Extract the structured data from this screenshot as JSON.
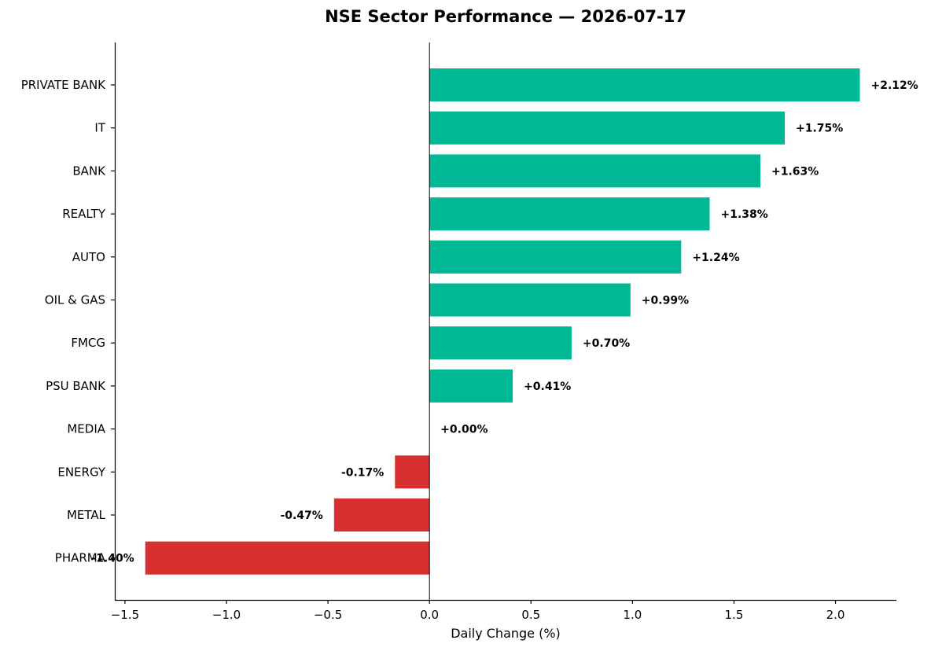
{
  "chart_data": {
    "type": "bar",
    "orientation": "horizontal",
    "title": "NSE Sector Performance — 2026-07-17",
    "xlabel": "Daily Change (%)",
    "ylabel": "",
    "xlim": [
      -1.55,
      2.3
    ],
    "xticks": [
      -1.5,
      -1.0,
      -0.5,
      0.0,
      0.5,
      1.0,
      1.5,
      2.0
    ],
    "xtick_labels": [
      "−1.5",
      "−1.0",
      "−0.5",
      "0.0",
      "0.5",
      "1.0",
      "1.5",
      "2.0"
    ],
    "categories": [
      "PRIVATE BANK",
      "IT",
      "BANK",
      "REALTY",
      "AUTO",
      "OIL & GAS",
      "FMCG",
      "PSU BANK",
      "MEDIA",
      "ENERGY",
      "METAL",
      "PHARMA"
    ],
    "values": [
      2.12,
      1.75,
      1.63,
      1.38,
      1.24,
      0.99,
      0.7,
      0.41,
      0.0,
      -0.17,
      -0.47,
      -1.4
    ],
    "value_labels": [
      "+2.12%",
      "+1.75%",
      "+1.63%",
      "+1.38%",
      "+1.24%",
      "+0.99%",
      "+0.70%",
      "+0.41%",
      "+0.00%",
      "-0.17%",
      "-0.47%",
      "-1.40%"
    ],
    "colors": {
      "positive": "#00b894",
      "negative": "#d63031"
    },
    "grid": false,
    "legend": "none"
  }
}
